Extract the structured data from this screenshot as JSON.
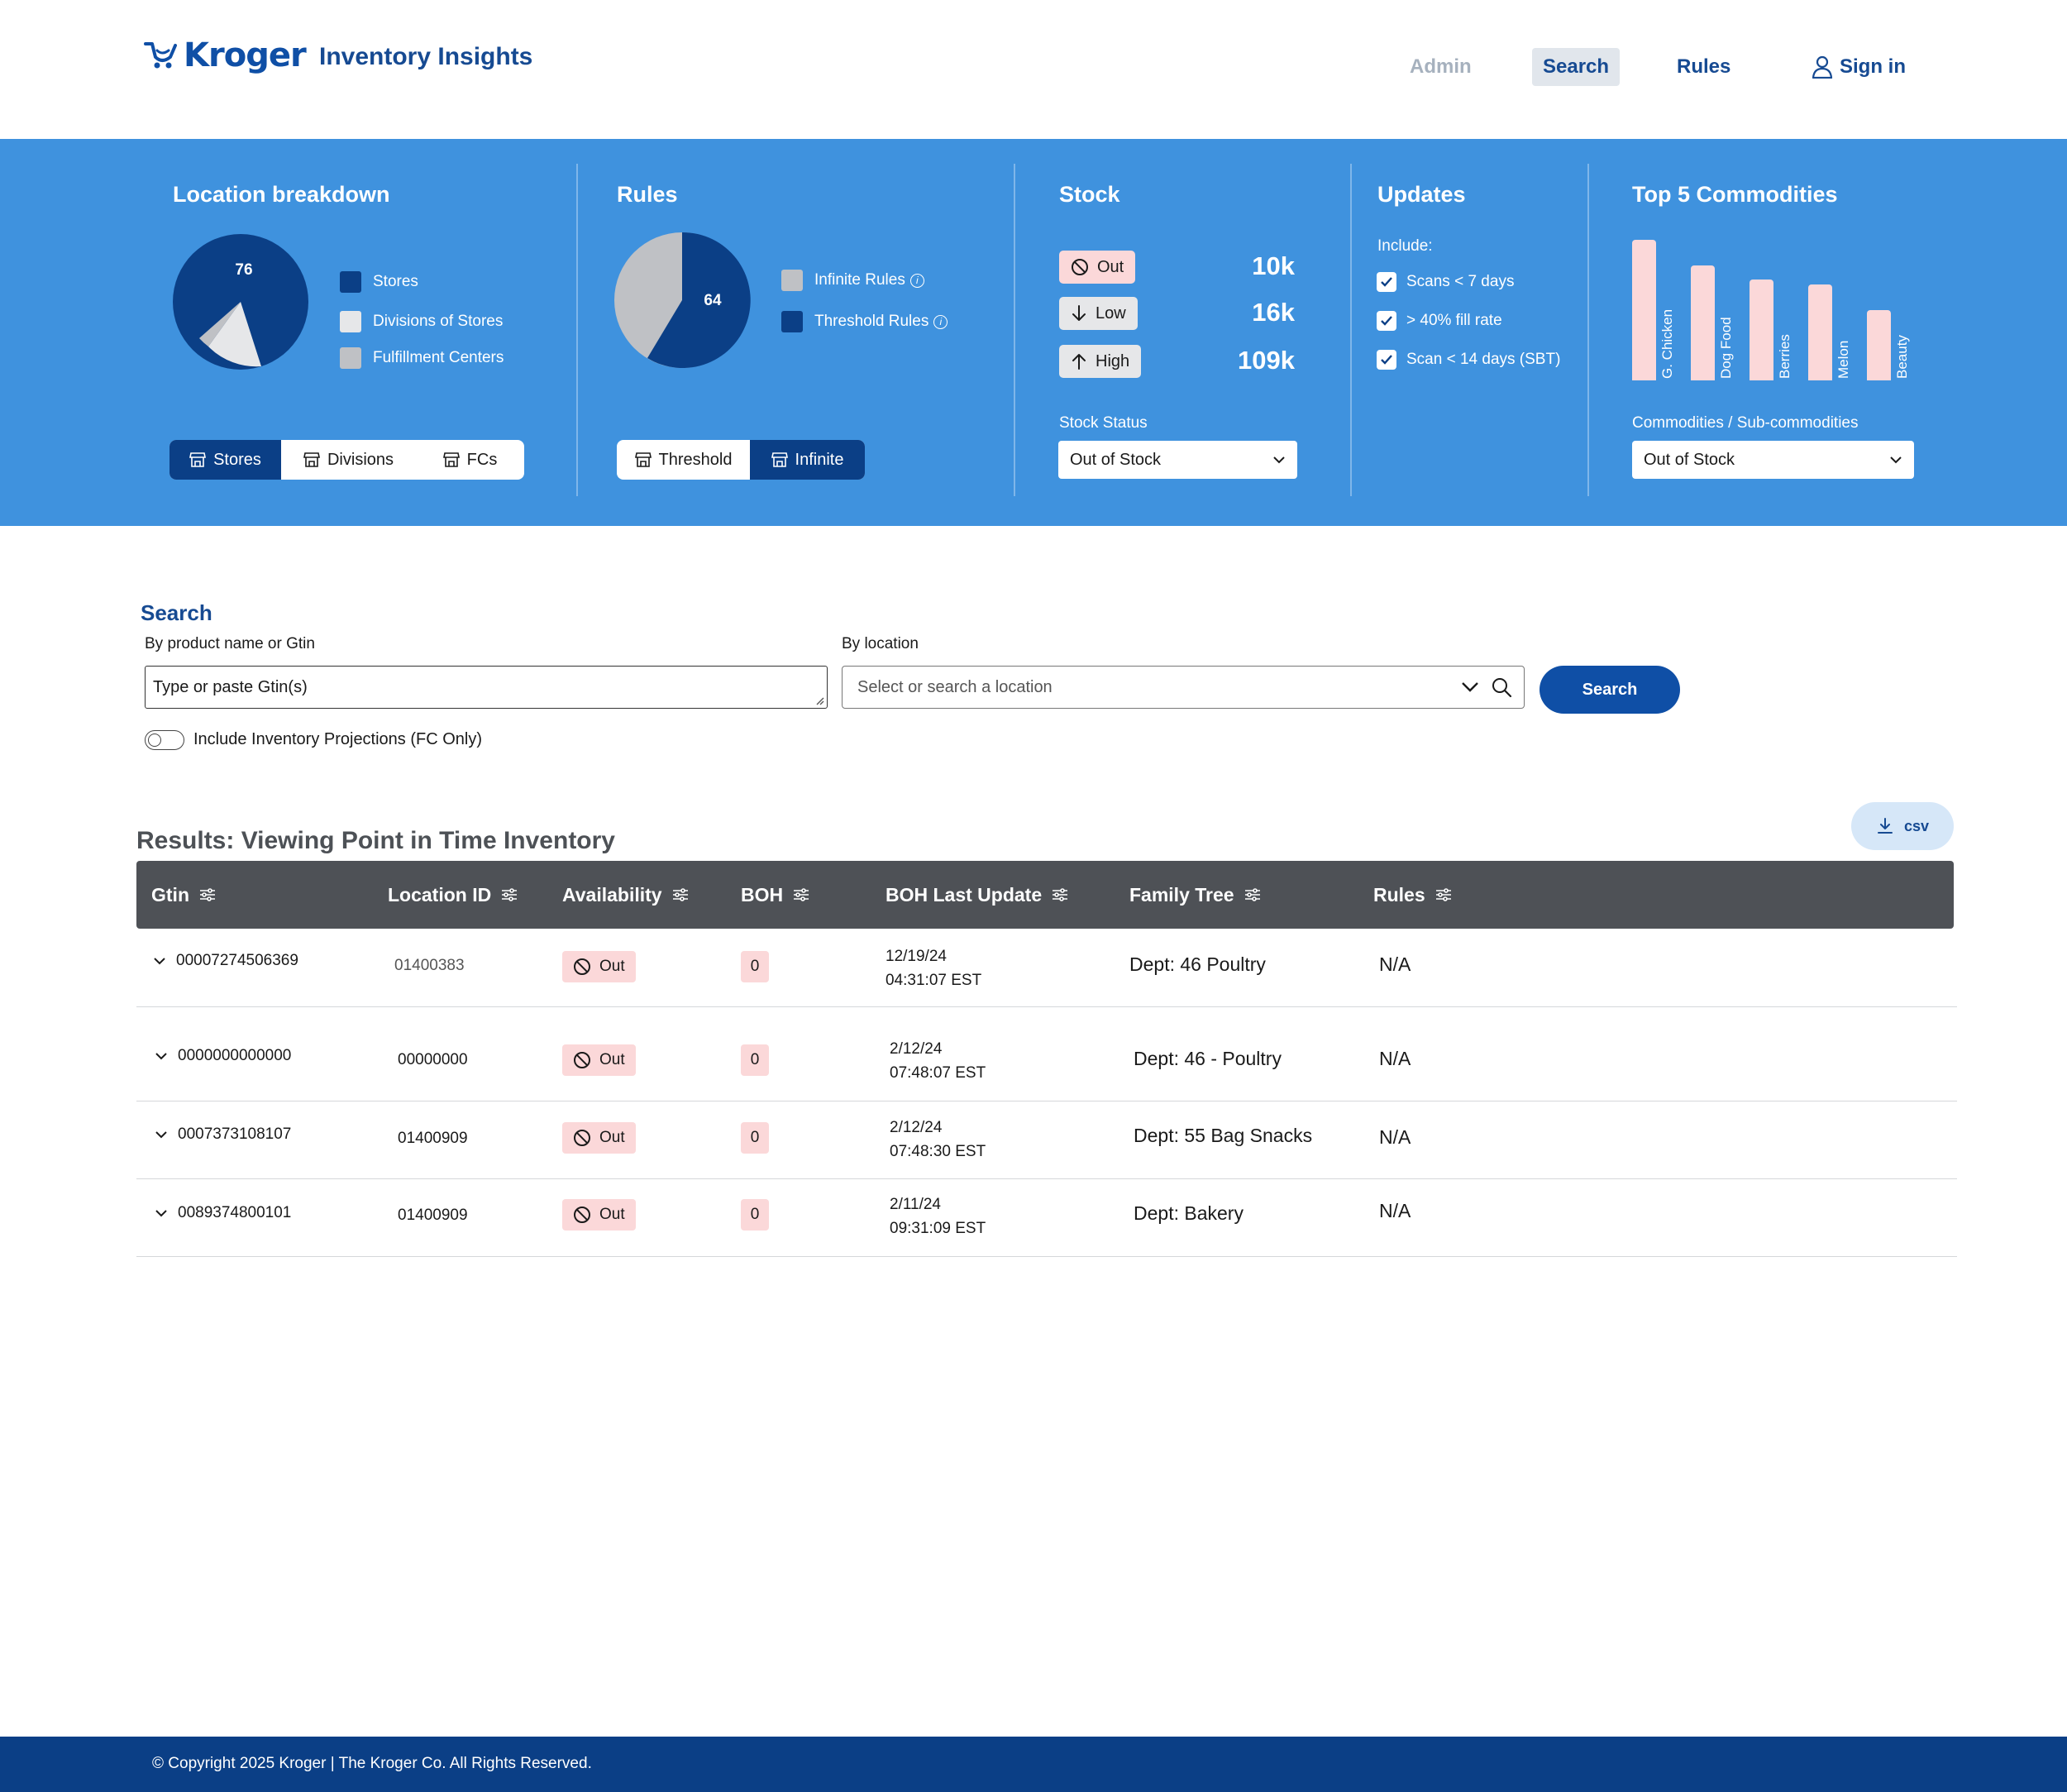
{
  "header": {
    "brand": "Kroger",
    "app_title": "Inventory Insights",
    "nav": {
      "admin": "Admin",
      "search": "Search",
      "rules": "Rules",
      "sign_in": "Sign in"
    }
  },
  "summary": {
    "location_breakdown": {
      "title": "Location breakdown",
      "pie_value_label": "76",
      "legend": [
        {
          "label": "Stores",
          "color": "#0b3f86"
        },
        {
          "label": "Divisions of Stores",
          "color": "#e6e7e9"
        },
        {
          "label": "Fulfillment Centers",
          "color": "#bfc1c5"
        }
      ],
      "tabs": [
        {
          "label": "Stores",
          "active": true
        },
        {
          "label": "Divisions",
          "active": false
        },
        {
          "label": "FCs",
          "active": false
        }
      ]
    },
    "rules": {
      "title": "Rules",
      "pie_value_label": "64",
      "legend": [
        {
          "label": "Infinite Rules",
          "color": "#bfc1c5"
        },
        {
          "label": "Threshold Rules",
          "color": "#0b3f86"
        }
      ],
      "tabs": [
        {
          "label": "Threshold",
          "active": false
        },
        {
          "label": "Infinite",
          "active": true
        }
      ]
    },
    "stock": {
      "title": "Stock",
      "items": [
        {
          "label": "Out",
          "value": "10k",
          "icon": "prohibit-icon",
          "color": "#fbd8d9"
        },
        {
          "label": "Low",
          "value": "16k",
          "icon": "arrow-down-icon",
          "color": "#e6e7e9"
        },
        {
          "label": "High",
          "value": "109k",
          "icon": "arrow-up-icon",
          "color": "#e6e7e9"
        }
      ],
      "status_label": "Stock Status",
      "status_value": "Out of Stock"
    },
    "updates": {
      "title": "Updates",
      "include_label": "Include:",
      "checks": [
        {
          "label": "Scans < 7 days",
          "checked": true
        },
        {
          "label": "> 40% fill rate",
          "checked": true
        },
        {
          "label": "Scan < 14 days (SBT)",
          "checked": true
        }
      ]
    },
    "top_commodities": {
      "title": "Top 5 Commodities",
      "select_label": "Commodities / Sub-commodities",
      "select_value": "Out of Stock"
    }
  },
  "chart_data": {
    "type": "bar",
    "categories": [
      "G. Chicken",
      "Dog Food",
      "Berries",
      "Melon",
      "Beauty"
    ],
    "values": [
      100,
      82,
      72,
      68,
      50
    ],
    "color": "#fbd8d9"
  },
  "search": {
    "heading": "Search",
    "product_label": "By product name or Gtin",
    "product_placeholder": "Type or paste Gtin(s)",
    "location_label": "By location",
    "location_placeholder": "Select or search a location",
    "button": "Search",
    "toggle_label": "Include Inventory Projections (FC Only)"
  },
  "results": {
    "title": "Results: Viewing Point in Time Inventory",
    "csv_label": "csv",
    "columns": [
      "Gtin",
      "Location ID",
      "Availability",
      "BOH",
      "BOH Last Update",
      "Family Tree",
      "Rules"
    ],
    "rows": [
      {
        "gtin": "00007274506369",
        "location_id": "01400383",
        "availability": "Out",
        "boh": "0",
        "date": "12/19/24",
        "time": "04:31:07 EST",
        "family_tree": "Dept: 46 Poultry",
        "rules": "N/A"
      },
      {
        "gtin": "0000000000000",
        "location_id": "00000000",
        "availability": "Out",
        "boh": "0",
        "date": "2/12/24",
        "time": "07:48:07 EST",
        "family_tree": "Dept: 46 - Poultry",
        "rules": "N/A"
      },
      {
        "gtin": "0007373108107",
        "location_id": "01400909",
        "availability": "Out",
        "boh": "0",
        "date": "2/12/24",
        "time": "07:48:30 EST",
        "family_tree": "Dept: 55 Bag Snacks",
        "rules": "N/A"
      },
      {
        "gtin": "0089374800101",
        "location_id": "01400909",
        "availability": "Out",
        "boh": "0",
        "date": "2/11/24",
        "time": "09:31:09 EST",
        "family_tree": "Dept: Bakery",
        "rules": "N/A"
      }
    ]
  },
  "footer": {
    "copyright": "© Copyright 2025 Kroger | The Kroger Co. All Rights Reserved."
  }
}
